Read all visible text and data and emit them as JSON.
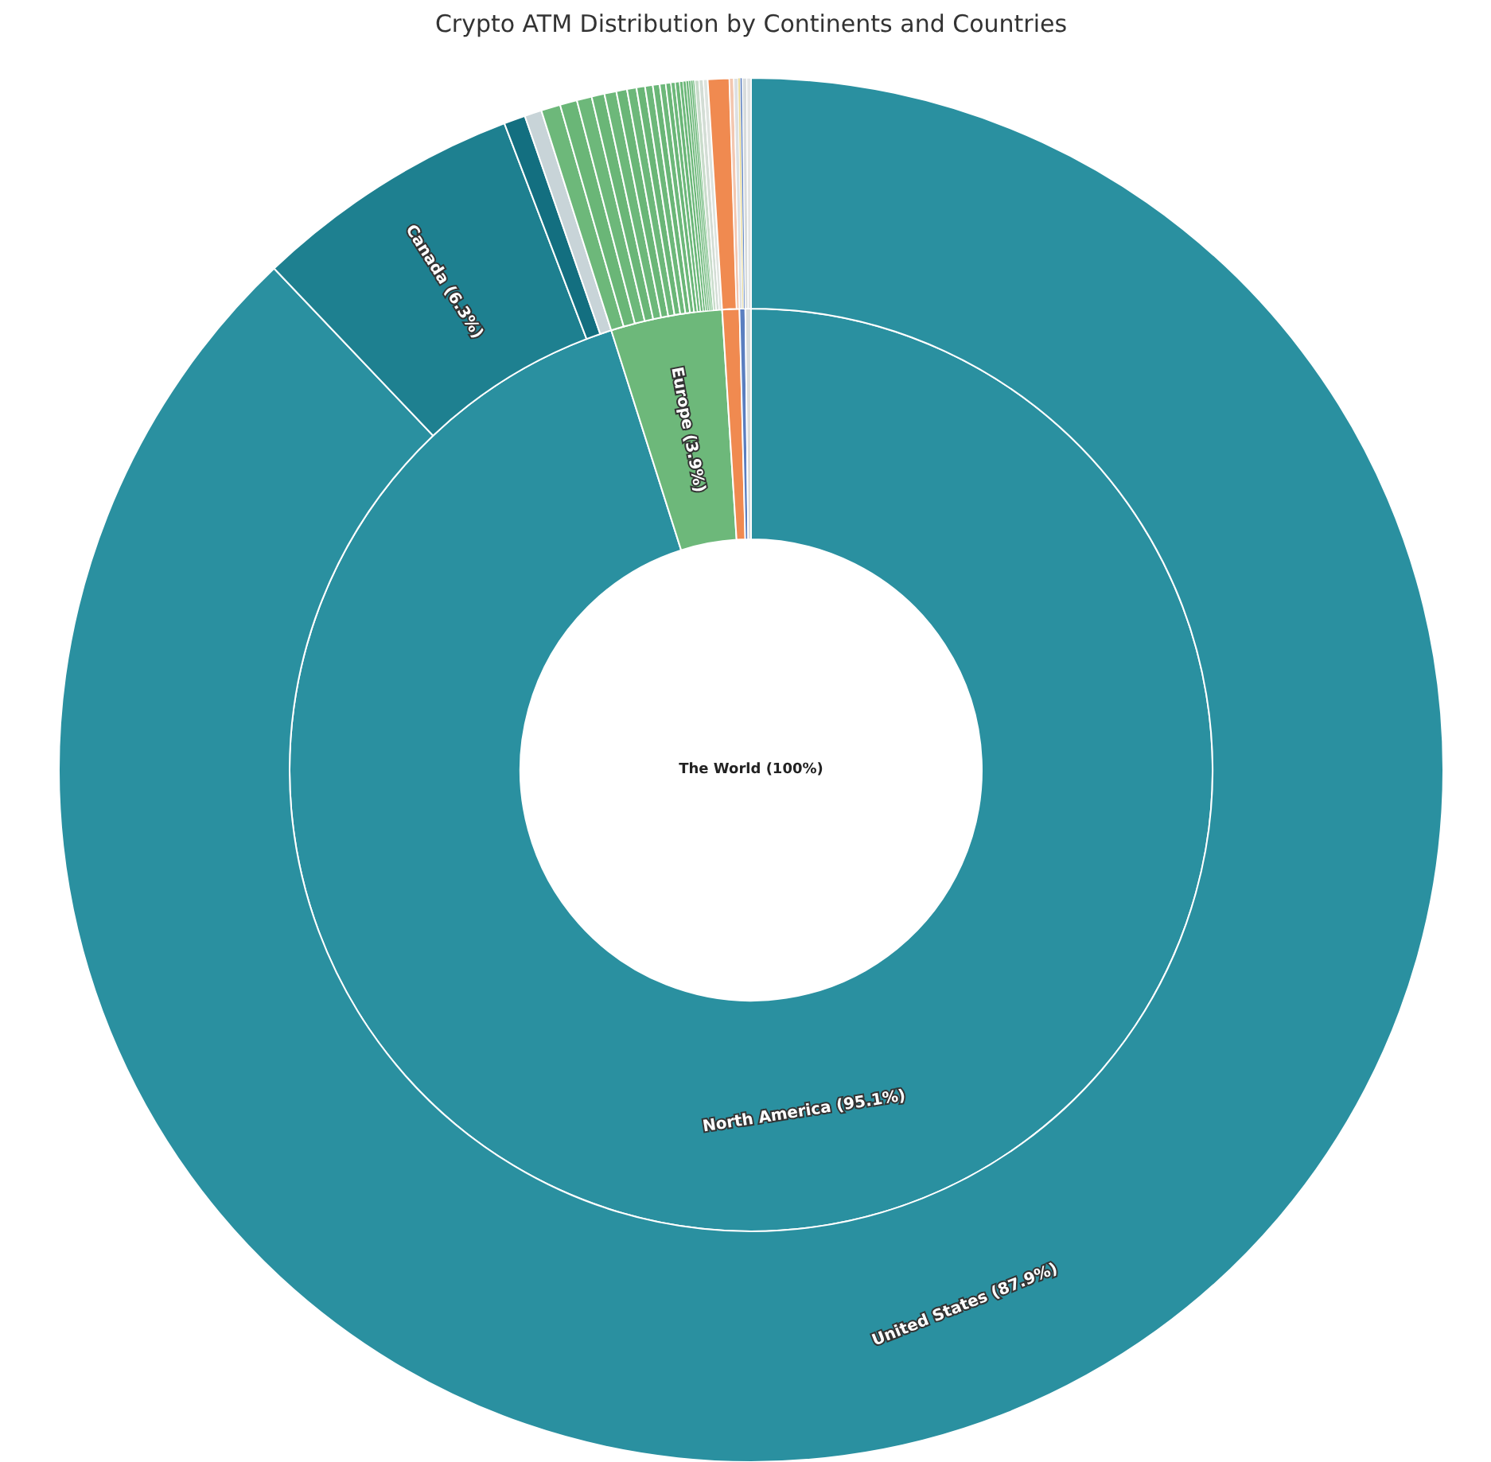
{
  "chart_data": {
    "type": "donut",
    "title": "Crypto ATM Distribution by Continents and Countries",
    "annotations": [
      "The World (100%)"
    ],
    "series": [
      {
        "value_labels": [
          "North America (95.1%)",
          "Europe (3.9%)",
          null,
          null,
          null
        ],
        "values": [
          95.1,
          3.9,
          0.6,
          0.2,
          0.2
        ],
        "colors": [
          "#2a90a0",
          "#6db87a",
          "#f08a50",
          "#5b7fc0",
          "#d8dcdc"
        ]
      },
      {
        "value_labels": [
          "United States (87.9%)",
          "Canada (6.3%)",
          null,
          null,
          null,
          null,
          null,
          null,
          null,
          null,
          null,
          null,
          null,
          null,
          null,
          null,
          null,
          null,
          null,
          null,
          null,
          null,
          null,
          null,
          null,
          null,
          null,
          null,
          null,
          null,
          null,
          null,
          null,
          null
        ],
        "values": [
          87.9,
          6.3,
          0.5,
          0.4,
          0.45,
          0.4,
          0.35,
          0.3,
          0.28,
          0.25,
          0.22,
          0.2,
          0.18,
          0.16,
          0.14,
          0.12,
          0.1,
          0.1,
          0.08,
          0.07,
          0.06,
          0.05,
          0.05,
          0.04,
          0.1,
          0.1,
          0.1,
          0.5,
          0.1,
          0.1,
          0.05,
          0.05,
          0.1,
          0.1
        ],
        "colors": [
          "#2a90a0",
          "#1e8090",
          "#136f80",
          "#c8d4d8",
          "#6db87a",
          "#6ab677",
          "#6db87a",
          "#6ab677",
          "#6db87a",
          "#6ab677",
          "#6db87a",
          "#6ab677",
          "#6db87a",
          "#6ab677",
          "#6db87a",
          "#6ab677",
          "#6db87a",
          "#6ab677",
          "#6db87a",
          "#6ab677",
          "#6db87a",
          "#6ab677",
          "#6db87a",
          "#6ab677",
          "#c9dccb",
          "#d3ddd5",
          "#dde3de",
          "#f08a50",
          "#f3c7b0",
          "#dcdfe2",
          "#e8d890",
          "#5b7fc0",
          "#d8dcdc",
          "#e2e4e4"
        ]
      }
    ]
  }
}
